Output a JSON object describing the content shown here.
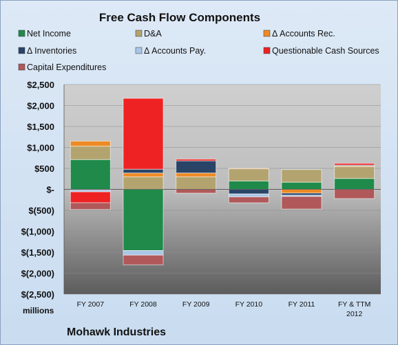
{
  "chart_data": {
    "type": "bar",
    "stacked": true,
    "title": "Free Cash Flow Components",
    "units_label": "millions",
    "company": "Mohawk Industries",
    "ylim": [
      -2500,
      2500
    ],
    "y_ticks": [
      2500,
      2000,
      1500,
      1000,
      500,
      0,
      -500,
      -1000,
      -1500,
      -2000,
      -2500
    ],
    "y_tick_labels": [
      "$2,500",
      "$2,000",
      "$1,500",
      "$1,000",
      "$500",
      "$-",
      "$(500)",
      "$(1,000)",
      "$(1,500)",
      "$(2,000)",
      "$(2,500)"
    ],
    "categories": [
      [
        "FY 2007"
      ],
      [
        "FY 2008"
      ],
      [
        "FY 2009"
      ],
      [
        "FY 2010"
      ],
      [
        "FY 2011"
      ],
      [
        "FY & TTM",
        "2012"
      ]
    ],
    "grid": true,
    "legend_position": "top",
    "series": [
      {
        "name": "Net Income",
        "color": "#1f8a4a",
        "values": [
          710,
          -1460,
          0,
          200,
          170,
          260
        ]
      },
      {
        "name": "D&A",
        "color": "#b3a36e",
        "values": [
          320,
          300,
          300,
          290,
          300,
          280
        ]
      },
      {
        "name": "Δ Accounts Rec.",
        "color": "#ee8a24",
        "values": [
          120,
          90,
          90,
          10,
          -90,
          20
        ]
      },
      {
        "name": "Δ Inventories",
        "color": "#2a4468",
        "values": [
          -20,
          90,
          290,
          -110,
          -50,
          20
        ]
      },
      {
        "name": "Δ Accounts Pay.",
        "color": "#a9c6e6",
        "values": [
          -40,
          -110,
          0,
          -70,
          -30,
          0
        ]
      },
      {
        "name": "Questionable Cash Sources",
        "color": "#ee2222",
        "values": [
          -260,
          1690,
          40,
          0,
          0,
          40
        ]
      },
      {
        "name": "Capital Expenditures",
        "color": "#b0585a",
        "values": [
          -160,
          -230,
          -90,
          -140,
          -300,
          -220
        ]
      }
    ]
  }
}
